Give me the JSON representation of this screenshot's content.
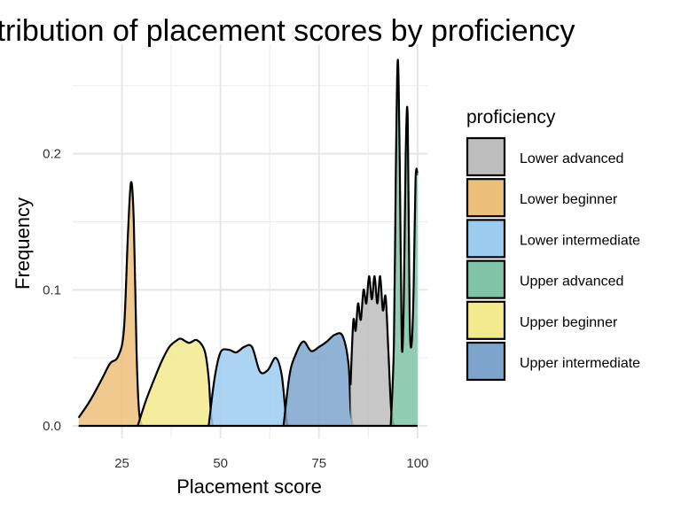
{
  "chart_data": {
    "type": "area",
    "title": "Distribution of placement scores by proficiency",
    "xlabel": "Placement score",
    "ylabel": "Frequency",
    "xlim": [
      12.5,
      102.5
    ],
    "ylim": [
      0,
      0.27
    ],
    "x_ticks": [
      25,
      50,
      75,
      100
    ],
    "x_tick_labels": [
      "25",
      "50",
      "75",
      "100"
    ],
    "y_ticks": [
      0,
      0.1,
      0.2
    ],
    "y_tick_labels": [
      "0.0",
      "0.1",
      "0.2"
    ],
    "grid": true,
    "legend": {
      "title": "proficiency",
      "position": "right",
      "labels": [
        "Lower advanced",
        "Lower beginner",
        "Lower intermediate",
        "Upper advanced",
        "Upper beginner",
        "Upper intermediate"
      ]
    },
    "colors": {
      "Lower advanced": "#bdbdbd",
      "Lower beginner": "#ecbf7a",
      "Lower intermediate": "#9ccbf0",
      "Upper advanced": "#7fc4a6",
      "Upper beginner": "#f2ea8c",
      "Upper intermediate": "#7da4cc"
    },
    "series": [
      {
        "name": "Lower beginner",
        "x": [
          14,
          17,
          20,
          22,
          24,
          25.5,
          26.5,
          27.3,
          28,
          28.7,
          29.3,
          30
        ],
        "y": [
          0.006,
          0.019,
          0.035,
          0.046,
          0.051,
          0.071,
          0.14,
          0.179,
          0.15,
          0.055,
          0.012,
          0
        ]
      },
      {
        "name": "Upper beginner",
        "x": [
          29,
          31,
          33,
          35,
          37,
          39,
          40,
          42,
          44,
          46,
          47,
          47.5,
          48
        ],
        "y": [
          0,
          0.018,
          0.033,
          0.047,
          0.058,
          0.063,
          0.064,
          0.061,
          0.063,
          0.055,
          0.035,
          0.012,
          0
        ]
      },
      {
        "name": "Lower intermediate",
        "x": [
          47,
          48.5,
          50,
          52,
          54,
          56,
          58,
          60,
          62,
          64,
          65.5,
          66.5,
          67
        ],
        "y": [
          0,
          0.035,
          0.054,
          0.056,
          0.054,
          0.058,
          0.058,
          0.04,
          0.041,
          0.05,
          0.038,
          0.01,
          0
        ]
      },
      {
        "name": "Upper intermediate",
        "x": [
          66,
          67.5,
          69,
          71,
          73,
          75,
          77,
          79,
          81,
          82.5,
          83,
          83.5
        ],
        "y": [
          0,
          0.037,
          0.052,
          0.062,
          0.055,
          0.058,
          0.062,
          0.067,
          0.066,
          0.045,
          0.012,
          0
        ]
      },
      {
        "name": "Lower advanced",
        "x": [
          83,
          83.7,
          84.3,
          84.9,
          85.6,
          86.3,
          87,
          87.7,
          88.4,
          89.1,
          89.8,
          90.5,
          91.2,
          91.9,
          92.6,
          93.3,
          94
        ],
        "y": [
          0.03,
          0.077,
          0.07,
          0.09,
          0.078,
          0.1,
          0.09,
          0.11,
          0.093,
          0.11,
          0.09,
          0.11,
          0.085,
          0.095,
          0.055,
          0.012,
          0
        ]
      },
      {
        "name": "Upper advanced",
        "x": [
          93.2,
          94,
          94.5,
          95,
          95.5,
          96,
          96.5,
          97,
          97.5,
          98,
          98.5,
          99,
          99.5,
          100
        ],
        "y": [
          0,
          0.06,
          0.19,
          0.269,
          0.19,
          0.06,
          0.09,
          0.2,
          0.227,
          0.08,
          0.06,
          0.1,
          0.182,
          0.185
        ]
      }
    ]
  }
}
